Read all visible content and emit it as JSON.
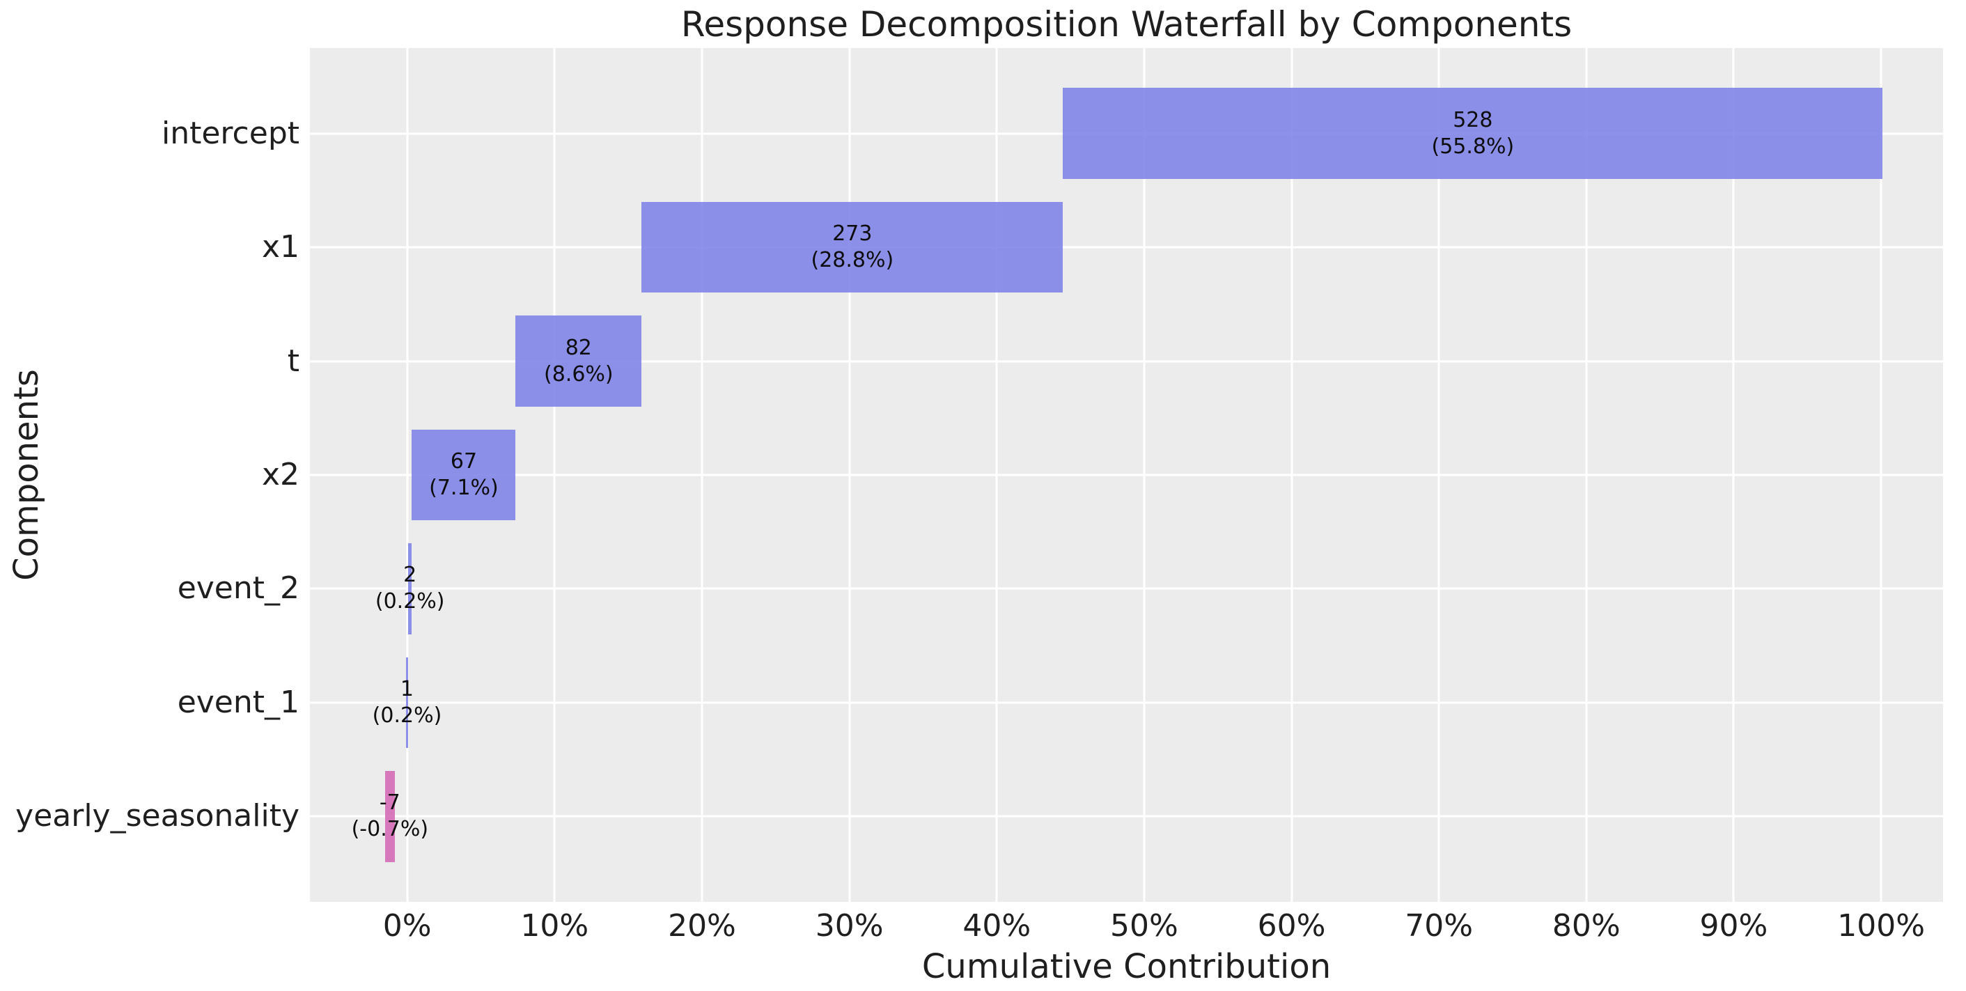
{
  "chart_data": {
    "type": "bar",
    "variant": "horizontal-waterfall",
    "title": "Response Decomposition Waterfall by Components",
    "xlabel": "Cumulative Contribution",
    "ylabel": "Components",
    "legend": false,
    "grid": true,
    "plot_background": "#ececec",
    "gridline_color": "#ffffff",
    "xlim": [
      -6.6,
      104.2
    ],
    "categories": [
      "intercept",
      "x1",
      "t",
      "x2",
      "event_2",
      "event_1",
      "yearly_seasonality"
    ],
    "bars": [
      {
        "category": "intercept",
        "value": 528,
        "value_label": "528",
        "pct_label": "(55.8%)",
        "start_pct": 44.5,
        "end_pct": 100.1,
        "sign": "positive"
      },
      {
        "category": "x1",
        "value": 273,
        "value_label": "273",
        "pct_label": "(28.8%)",
        "start_pct": 15.9,
        "end_pct": 44.5,
        "sign": "positive"
      },
      {
        "category": "t",
        "value": 82,
        "value_label": "82",
        "pct_label": "(8.6%)",
        "start_pct": 7.36,
        "end_pct": 15.9,
        "sign": "positive"
      },
      {
        "category": "x2",
        "value": 67,
        "value_label": "67",
        "pct_label": "(7.1%)",
        "start_pct": 0.32,
        "end_pct": 7.36,
        "sign": "positive"
      },
      {
        "category": "event_2",
        "value": 2,
        "value_label": "2",
        "pct_label": "(0.2%)",
        "start_pct": 0.06,
        "end_pct": 0.32,
        "sign": "positive"
      },
      {
        "category": "event_1",
        "value": 1,
        "value_label": "1",
        "pct_label": "(0.2%)",
        "start_pct": -0.1,
        "end_pct": 0.08,
        "sign": "positive"
      },
      {
        "category": "yearly_seasonality",
        "value": -7,
        "value_label": "-7",
        "pct_label": "(-0.7%)",
        "start_pct": -1.52,
        "end_pct": -0.83,
        "sign": "negative"
      }
    ],
    "xticks": [
      {
        "value": 0,
        "label": "0%"
      },
      {
        "value": 10,
        "label": "10%"
      },
      {
        "value": 20,
        "label": "20%"
      },
      {
        "value": 30,
        "label": "30%"
      },
      {
        "value": 40,
        "label": "40%"
      },
      {
        "value": 50,
        "label": "50%"
      },
      {
        "value": 60,
        "label": "60%"
      },
      {
        "value": 70,
        "label": "70%"
      },
      {
        "value": 80,
        "label": "80%"
      },
      {
        "value": 90,
        "label": "90%"
      },
      {
        "value": 100,
        "label": "100%"
      }
    ],
    "colors": {
      "positive": "#8b8fe8",
      "negative": "#d878bc",
      "positive_rgba": "rgba(126,130,231,0.88)",
      "negative_rgba": "rgba(213,104,181,0.88)",
      "text": "#1f1f1f"
    }
  }
}
